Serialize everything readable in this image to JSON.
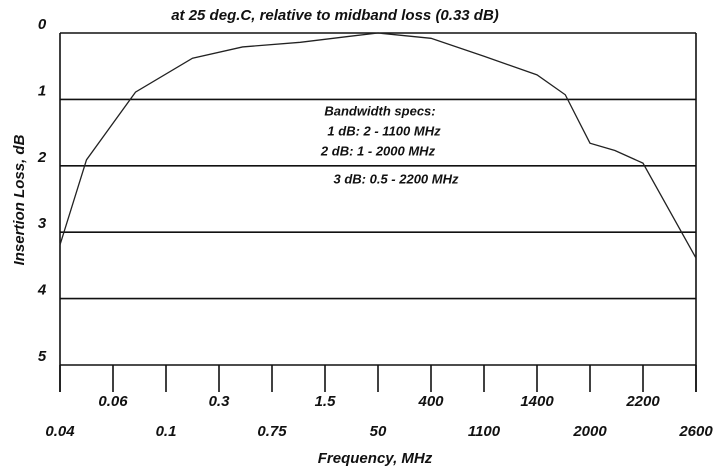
{
  "chart_data": {
    "type": "line",
    "title": "at 25 deg.C, relative to midband loss (0.33 dB)",
    "x_label": "Frequency, MHz",
    "y_label": "Insertion Loss, dB",
    "annotations": [
      "Bandwidth specs:",
      "1 dB: 2 - 1100 MHz",
      "2 dB: 1 - 2000 MHz",
      "3 dB: 0.5 - 2200 MHz"
    ],
    "xticks": [
      0.04,
      0.06,
      0.1,
      0.3,
      0.75,
      1.5,
      50,
      400,
      1100,
      1400,
      2000,
      2200,
      2600
    ],
    "ylim": [
      0,
      5
    ],
    "yticks": [
      0,
      1,
      2,
      3,
      4,
      5
    ],
    "y_inverted": true,
    "grid": true,
    "series": [
      {
        "name": "Insertion Loss",
        "color": "#222222",
        "x": [
          0.04,
          0.05,
          0.077,
          0.2,
          0.5,
          1.15,
          24,
          50,
          400,
          1100,
          1400,
          1720,
          2000,
          2094,
          2200,
          2600
        ],
        "values": [
          3.19,
          1.91,
          0.89,
          0.38,
          0.21,
          0.14,
          0.05,
          0,
          0.08,
          0.35,
          0.63,
          0.93,
          1.66,
          1.77,
          1.96,
          3.39
        ]
      }
    ]
  }
}
